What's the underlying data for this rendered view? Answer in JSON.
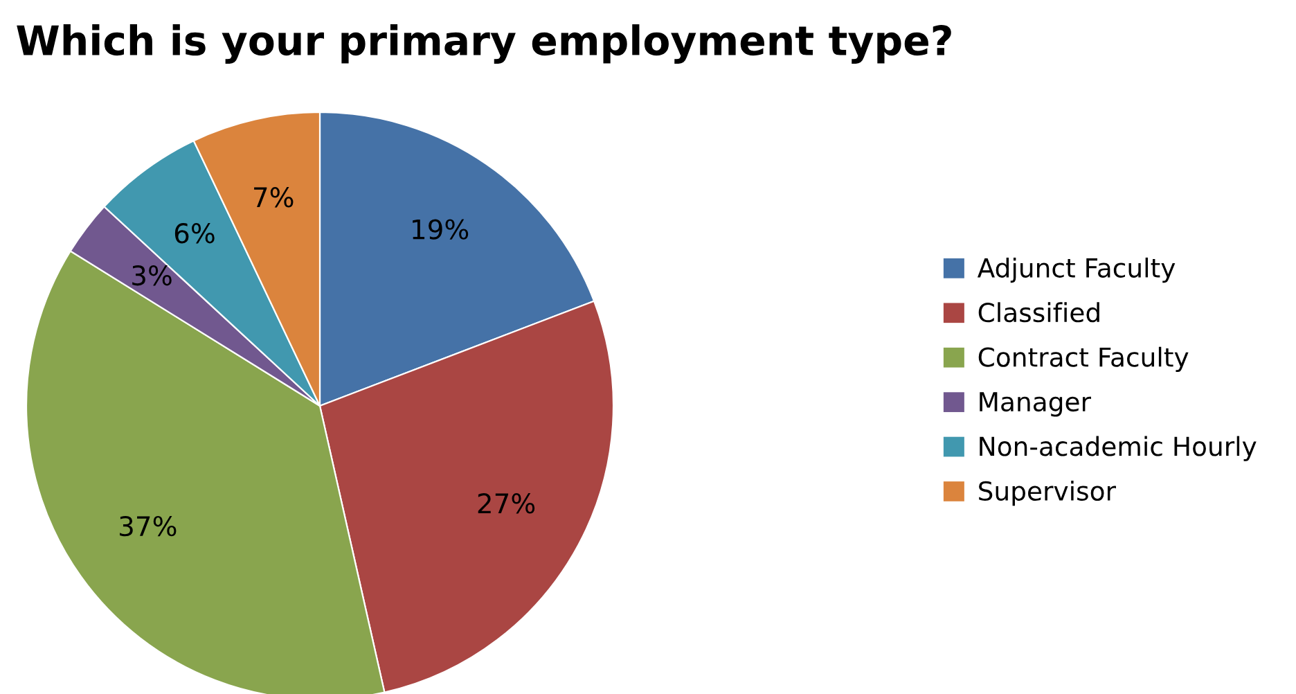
{
  "chart_data": {
    "type": "pie",
    "title": "Which is your primary employment type?",
    "categories": [
      "Adjunct Faculty",
      "Classified",
      "Contract Faculty",
      "Manager",
      "Non-academic Hourly",
      "Supervisor"
    ],
    "values": [
      19,
      27,
      37,
      3,
      6,
      7
    ],
    "colors": [
      "#4572a7",
      "#aa4643",
      "#89a54e",
      "#71588f",
      "#4198af",
      "#db843d"
    ],
    "value_labels": [
      "19%",
      "27%",
      "37%",
      "3%",
      "6%",
      "7%"
    ],
    "legend": "right"
  }
}
